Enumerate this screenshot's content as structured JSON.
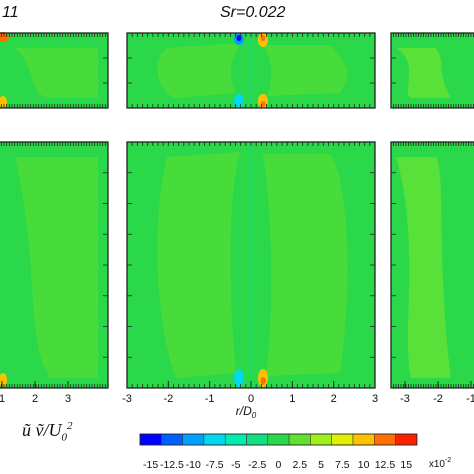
{
  "chart_data": {
    "type": "heatmap",
    "panel_titles": [
      "11",
      "Sr=0.022"
    ],
    "xlabel": "r/D0",
    "xlabel_main": "r/D",
    "xlabel_sub": "0",
    "xlim": [
      -3,
      3
    ],
    "x_tick_labels_left": [
      "1",
      "2",
      "3"
    ],
    "x_tick_labels_center": [
      "-3",
      "-2",
      "-1",
      "0",
      "1",
      "2",
      "3"
    ],
    "x_tick_labels_right": [
      "-3",
      "-2",
      "-1"
    ],
    "x_ticks": [
      -3,
      -2,
      -1,
      0,
      1,
      2,
      3
    ],
    "colorbar": {
      "label": "ũ ṽ/U0²",
      "label_main": "ũ ṽ/U",
      "label_sub": "0",
      "label_sup": "2",
      "tick_labels": [
        "-15",
        "-12.5",
        "-10",
        "-7.5",
        "-5",
        "-2.5",
        "0",
        "2.5",
        "5",
        "7.5",
        "10",
        "12.5",
        "15"
      ],
      "ticks": [
        -15,
        -12.5,
        -10,
        -7.5,
        -5,
        -2.5,
        0,
        2.5,
        5,
        7.5,
        10,
        12.5,
        15
      ],
      "multiplier": "x10",
      "multiplier_exp": "-2",
      "levels": [
        -15,
        -12.5,
        -10,
        -7.5,
        -5,
        -2.5,
        0,
        2.5,
        5,
        7.5,
        10,
        12.5,
        15
      ],
      "colors": [
        "#0000ff",
        "#0060ff",
        "#00a0ff",
        "#00d8f0",
        "#00ecb0",
        "#10e080",
        "#2ad84a",
        "#60e030",
        "#a0f020",
        "#e0f000",
        "#ffc000",
        "#ff7000",
        "#ff2000"
      ]
    },
    "background_level": 0,
    "background_color": "#2ad84a"
  }
}
